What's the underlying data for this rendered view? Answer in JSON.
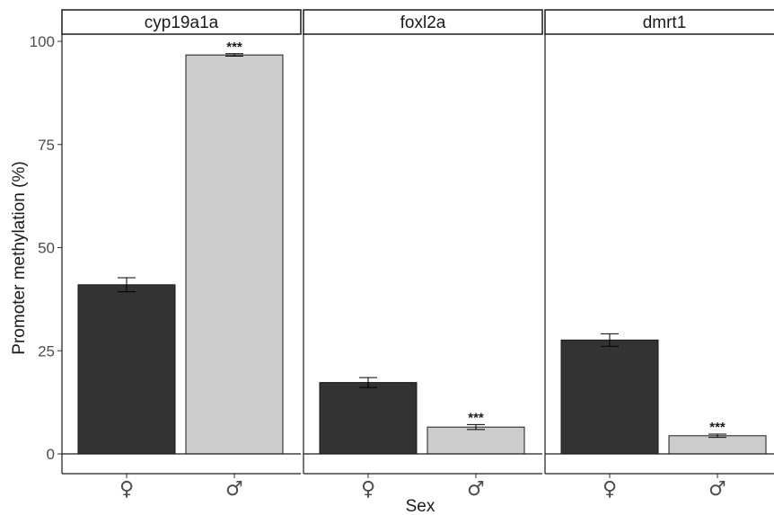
{
  "chart_data": {
    "type": "bar",
    "xlabel": "Sex",
    "ylabel": "Promoter methylation (%)",
    "ylim": [
      0,
      100
    ],
    "yticks": [
      "0",
      "25",
      "50",
      "75",
      "100"
    ],
    "categories": [
      "♀",
      "♂"
    ],
    "colors": {
      "female": "#333333",
      "male": "#cccccc"
    },
    "grid": false,
    "panels": [
      {
        "title": "cyp19a1a",
        "values": [
          41,
          96.7
        ],
        "errors": [
          1.7,
          0.3
        ],
        "significance": [
          "",
          "***"
        ]
      },
      {
        "title": "foxl2a",
        "values": [
          17.3,
          6.5
        ],
        "errors": [
          1.2,
          0.6
        ],
        "significance": [
          "",
          "***"
        ]
      },
      {
        "title": "dmrt1",
        "values": [
          27.6,
          4.4
        ],
        "errors": [
          1.5,
          0.4
        ],
        "significance": [
          "",
          "***"
        ]
      }
    ]
  }
}
